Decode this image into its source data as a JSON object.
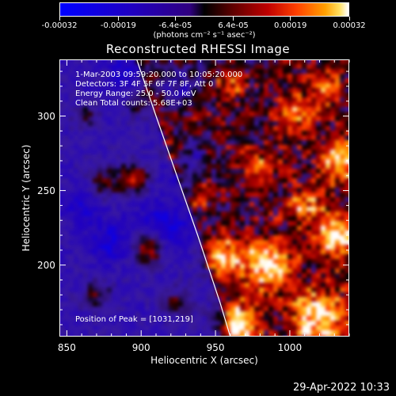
{
  "chart_data": {
    "type": "heatmap",
    "title": "Reconstructed RHESSI Image",
    "xlabel": "Heliocentric X (arcsec)",
    "ylabel": "Heliocentric Y (arcsec)",
    "xlim": [
      845,
      1040
    ],
    "ylim": [
      152,
      338
    ],
    "x_ticks": [
      "850",
      "900",
      "950",
      "1000"
    ],
    "x_tick_values": [
      850,
      900,
      950,
      1000
    ],
    "y_ticks": [
      "200",
      "250",
      "300"
    ],
    "y_tick_values": [
      200,
      250,
      300
    ],
    "colorbar": {
      "ticks": [
        "-0.00032",
        "-0.00019",
        "-6.4e-05",
        "6.4e-05",
        "0.00019",
        "0.00032"
      ],
      "tick_values": [
        -0.00032,
        -0.00019,
        -6.4e-05,
        6.4e-05,
        0.00019,
        0.00032
      ],
      "range": [
        -0.00032,
        0.00032
      ],
      "units": "(photons cm⁻² s⁻¹ asec⁻²)",
      "colors": [
        "#0000ff",
        "#2000c0",
        "#300080",
        "#000000",
        "#500000",
        "#a00000",
        "#ff3000",
        "#ff9000",
        "#ffd040",
        "#ffffff"
      ]
    },
    "annotations": [
      "1-Mar-2003 09:59:20.000 to 10:05:20.000",
      "Detectors: 3F 4F 5F 6F 7F 8F, Att 0",
      "Energy Range: 25.0 - 50.0 keV",
      "Clean    Total counts: 5.68E+03",
      "Position of Peak = [1031,219]"
    ],
    "limb_curve": [
      [
        897,
        338
      ],
      [
        910,
        300
      ],
      [
        924,
        260
      ],
      [
        938,
        220
      ],
      [
        953,
        175
      ],
      [
        960,
        152
      ]
    ],
    "sources": [
      {
        "x": 1032,
        "y": 219,
        "intensity": 1.0,
        "r": 10
      },
      {
        "x": 985,
        "y": 200,
        "intensity": 0.95,
        "r": 12
      },
      {
        "x": 1020,
        "y": 165,
        "intensity": 0.9,
        "r": 14
      },
      {
        "x": 965,
        "y": 160,
        "intensity": 0.95,
        "r": 10
      },
      {
        "x": 955,
        "y": 205,
        "intensity": 0.75,
        "r": 9
      },
      {
        "x": 1035,
        "y": 270,
        "intensity": 0.8,
        "r": 10
      },
      {
        "x": 1010,
        "y": 240,
        "intensity": 0.6,
        "r": 9
      },
      {
        "x": 1005,
        "y": 300,
        "intensity": 0.55,
        "r": 9
      },
      {
        "x": 1025,
        "y": 320,
        "intensity": 0.5,
        "r": 8
      },
      {
        "x": 980,
        "y": 265,
        "intensity": 0.5,
        "r": 8
      },
      {
        "x": 905,
        "y": 212,
        "intensity": 0.85,
        "r": 8
      },
      {
        "x": 895,
        "y": 258,
        "intensity": 0.75,
        "r": 7
      },
      {
        "x": 875,
        "y": 255,
        "intensity": 0.55,
        "r": 7
      },
      {
        "x": 920,
        "y": 275,
        "intensity": 0.5,
        "r": 6
      },
      {
        "x": 900,
        "y": 310,
        "intensity": 0.45,
        "r": 7
      },
      {
        "x": 862,
        "y": 300,
        "intensity": 0.4,
        "r": 6
      },
      {
        "x": 870,
        "y": 180,
        "intensity": 0.45,
        "r": 7
      },
      {
        "x": 925,
        "y": 175,
        "intensity": 0.45,
        "r": 7
      },
      {
        "x": 960,
        "y": 320,
        "intensity": 0.45,
        "r": 7
      },
      {
        "x": 940,
        "y": 245,
        "intensity": 0.3,
        "r": 6
      },
      {
        "x": 925,
        "y": 320,
        "intensity": -0.45,
        "r": 10
      },
      {
        "x": 915,
        "y": 225,
        "intensity": -0.5,
        "r": 12
      },
      {
        "x": 880,
        "y": 215,
        "intensity": -0.4,
        "r": 10
      },
      {
        "x": 930,
        "y": 270,
        "intensity": -0.45,
        "r": 10
      },
      {
        "x": 860,
        "y": 240,
        "intensity": -0.35,
        "r": 9
      },
      {
        "x": 890,
        "y": 330,
        "intensity": -0.3,
        "r": 9
      }
    ],
    "grid": false
  },
  "datestamp": "29-Apr-2022 10:33"
}
